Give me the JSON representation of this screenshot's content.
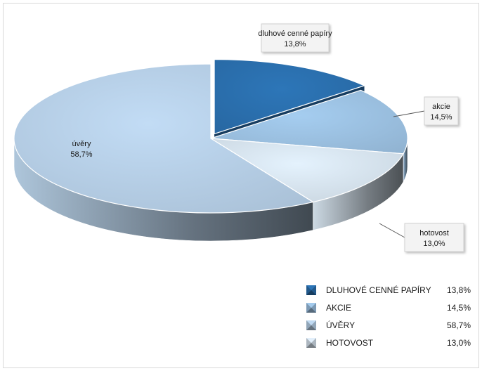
{
  "chart_data": {
    "type": "pie",
    "three_d": true,
    "title": "",
    "slices": [
      {
        "label": "dluhové cenné papíry",
        "value": 13.8,
        "value_label": "13,8%",
        "legend_label": "DLUHOVÉ CENNÉ PAPÍRY",
        "color": "#2a6fae",
        "exploded": true
      },
      {
        "label": "akcie",
        "value": 14.5,
        "value_label": "14,5%",
        "legend_label": "AKCIE",
        "color": "#9cc1e2",
        "exploded": false
      },
      {
        "label": "hotovost",
        "value": 13.0,
        "value_label": "13,0%",
        "legend_label": "HOTOVOST",
        "color": "#d7e4ef",
        "exploded": false
      },
      {
        "label": "úvěry",
        "value": 58.7,
        "value_label": "58,7%",
        "legend_label": "ÚVĚRY",
        "color": "#b7d0e7",
        "exploded": false
      }
    ],
    "legend_order": [
      0,
      1,
      3,
      2
    ],
    "legend_position": "bottom-right"
  }
}
